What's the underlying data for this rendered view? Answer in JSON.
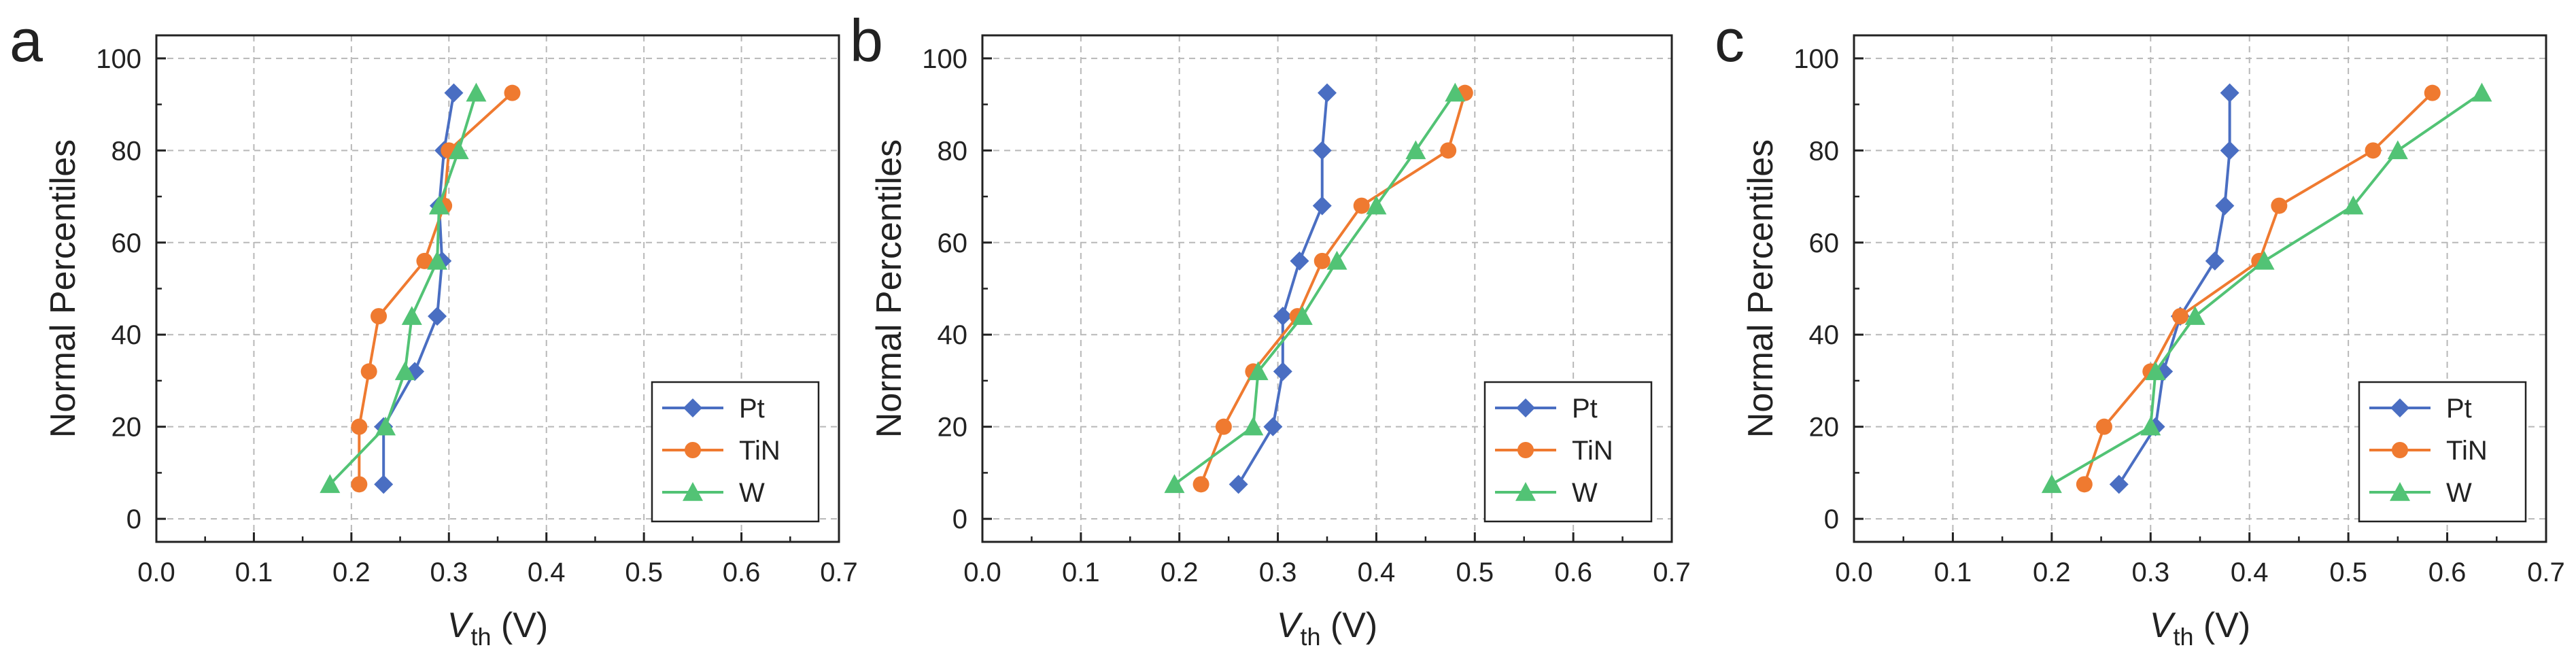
{
  "figure": {
    "panel_labels": [
      "a",
      "b",
      "c"
    ]
  },
  "colors": {
    "Pt": "#4a6ec2",
    "TiN": "#ef7a30",
    "W": "#52c375",
    "axis": "#222222",
    "grid": "#b8b8b8"
  },
  "chart_data": [
    {
      "type": "line",
      "panel": "a",
      "xlabel": "V",
      "xlabel_sub": "th",
      "xlabel_unit": " (V)",
      "ylabel": "Normal Percentiles",
      "xlim": [
        0.0,
        0.7
      ],
      "ylim": [
        -5,
        105
      ],
      "xticks": [
        "0.0",
        "0.1",
        "0.2",
        "0.3",
        "0.4",
        "0.5",
        "0.6",
        "0.7"
      ],
      "yticks": [
        "0",
        "20",
        "40",
        "60",
        "80",
        "100"
      ],
      "grid": true,
      "legend_position": "bottom-right",
      "series": [
        {
          "name": "Pt",
          "marker": "diamond",
          "x": [
            0.233,
            0.233,
            0.265,
            0.288,
            0.293,
            0.29,
            0.295,
            0.305
          ],
          "y": [
            7.5,
            20,
            32,
            44,
            56,
            68,
            80,
            92.5
          ]
        },
        {
          "name": "TiN",
          "marker": "circle",
          "x": [
            0.208,
            0.208,
            0.218,
            0.228,
            0.275,
            0.295,
            0.3,
            0.365
          ],
          "y": [
            7.5,
            20,
            32,
            44,
            56,
            68,
            80,
            92.5
          ]
        },
        {
          "name": "W",
          "marker": "triangle",
          "x": [
            0.178,
            0.235,
            0.255,
            0.262,
            0.288,
            0.29,
            0.31,
            0.328
          ],
          "y": [
            7.5,
            20,
            32,
            44,
            56,
            68,
            80,
            92.5
          ]
        }
      ]
    },
    {
      "type": "line",
      "panel": "b",
      "xlabel": "V",
      "xlabel_sub": "th",
      "xlabel_unit": " (V)",
      "ylabel": "Normal Percentiles",
      "xlim": [
        0.0,
        0.7
      ],
      "ylim": [
        -5,
        105
      ],
      "xticks": [
        "0.0",
        "0.1",
        "0.2",
        "0.3",
        "0.4",
        "0.5",
        "0.6",
        "0.7"
      ],
      "yticks": [
        "0",
        "20",
        "40",
        "60",
        "80",
        "100"
      ],
      "grid": true,
      "legend_position": "bottom-right",
      "series": [
        {
          "name": "Pt",
          "marker": "diamond",
          "x": [
            0.26,
            0.295,
            0.305,
            0.305,
            0.322,
            0.345,
            0.345,
            0.35
          ],
          "y": [
            7.5,
            20,
            32,
            44,
            56,
            68,
            80,
            92.5
          ]
        },
        {
          "name": "TiN",
          "marker": "circle",
          "x": [
            0.222,
            0.245,
            0.275,
            0.32,
            0.345,
            0.385,
            0.473,
            0.49
          ],
          "y": [
            7.5,
            20,
            32,
            44,
            56,
            68,
            80,
            92.5
          ]
        },
        {
          "name": "W",
          "marker": "triangle",
          "x": [
            0.195,
            0.275,
            0.28,
            0.325,
            0.36,
            0.4,
            0.44,
            0.48
          ],
          "y": [
            7.5,
            20,
            32,
            44,
            56,
            68,
            80,
            92.5
          ]
        }
      ]
    },
    {
      "type": "line",
      "panel": "c",
      "xlabel": "V",
      "xlabel_sub": "th",
      "xlabel_unit": " (V)",
      "ylabel": "Normal Percentiles",
      "xlim": [
        0.0,
        0.7
      ],
      "ylim": [
        -5,
        105
      ],
      "xticks": [
        "0.0",
        "0.1",
        "0.2",
        "0.3",
        "0.4",
        "0.5",
        "0.6",
        "0.7"
      ],
      "yticks": [
        "0",
        "20",
        "40",
        "60",
        "80",
        "100"
      ],
      "grid": true,
      "legend_position": "bottom-right",
      "series": [
        {
          "name": "Pt",
          "marker": "diamond",
          "x": [
            0.268,
            0.305,
            0.313,
            0.33,
            0.365,
            0.375,
            0.38,
            0.38
          ],
          "y": [
            7.5,
            20,
            32,
            44,
            56,
            68,
            80,
            92.5
          ]
        },
        {
          "name": "TiN",
          "marker": "circle",
          "x": [
            0.233,
            0.253,
            0.3,
            0.33,
            0.41,
            0.43,
            0.525,
            0.585
          ],
          "y": [
            7.5,
            20,
            32,
            44,
            56,
            68,
            80,
            92.5
          ]
        },
        {
          "name": "W",
          "marker": "triangle",
          "x": [
            0.2,
            0.3,
            0.305,
            0.345,
            0.415,
            0.505,
            0.55,
            0.635
          ],
          "y": [
            7.5,
            20,
            32,
            44,
            56,
            68,
            80,
            92.5
          ]
        }
      ]
    }
  ]
}
